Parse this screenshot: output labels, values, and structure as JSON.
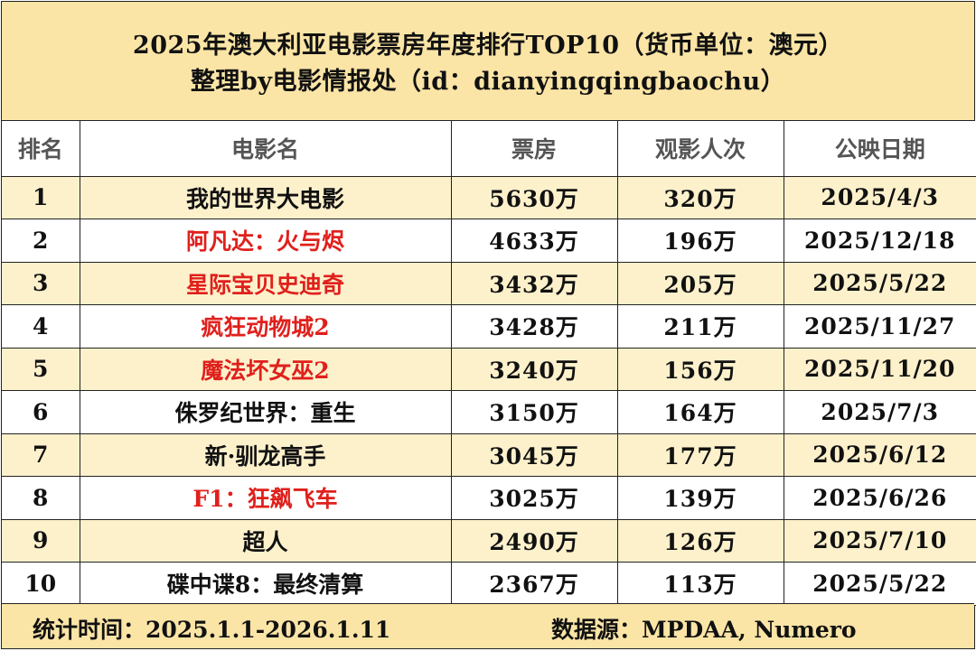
{
  "title": {
    "line1": "2025年澳大利亚电影票房年度排行TOP10（货币单位：澳元）",
    "line2": "整理by电影情报处（id：dianyingqingbaochu）"
  },
  "headers": [
    "排名",
    "电影名",
    "票房",
    "观影人次",
    "公映日期"
  ],
  "rows": [
    {
      "rank": "1",
      "title": "我的世界大电影",
      "box_office": "5630万",
      "admissions": "320万",
      "release": "2025/4/3",
      "highlight": false
    },
    {
      "rank": "2",
      "title": "阿凡达：火与烬",
      "box_office": "4633万",
      "admissions": "196万",
      "release": "2025/12/18",
      "highlight": true
    },
    {
      "rank": "3",
      "title": "星际宝贝史迪奇",
      "box_office": "3432万",
      "admissions": "205万",
      "release": "2025/5/22",
      "highlight": true
    },
    {
      "rank": "4",
      "title": "疯狂动物城2",
      "box_office": "3428万",
      "admissions": "211万",
      "release": "2025/11/27",
      "highlight": true
    },
    {
      "rank": "5",
      "title": "魔法坏女巫2",
      "box_office": "3240万",
      "admissions": "156万",
      "release": "2025/11/20",
      "highlight": true
    },
    {
      "rank": "6",
      "title": "侏罗纪世界：重生",
      "box_office": "3150万",
      "admissions": "164万",
      "release": "2025/7/3",
      "highlight": false
    },
    {
      "rank": "7",
      "title": "新·驯龙高手",
      "box_office": "3045万",
      "admissions": "177万",
      "release": "2025/6/12",
      "highlight": false
    },
    {
      "rank": "8",
      "title": "F1：狂飙飞车",
      "box_office": "3025万",
      "admissions": "139万",
      "release": "2025/6/26",
      "highlight": true
    },
    {
      "rank": "9",
      "title": "超人",
      "box_office": "2490万",
      "admissions": "126万",
      "release": "2025/7/10",
      "highlight": false
    },
    {
      "rank": "10",
      "title": "碟中谍8：最终清算",
      "box_office": "2367万",
      "admissions": "113万",
      "release": "2025/5/22",
      "highlight": false
    }
  ],
  "footer": {
    "period": "统计时间：2025.1.1-2026.1.11",
    "source": "数据源：MPDAA, Numero"
  },
  "colors": {
    "header_band": "#fbe5a6",
    "row_stripe": "#fdf1cc",
    "highlight_text": "#e0201c"
  }
}
